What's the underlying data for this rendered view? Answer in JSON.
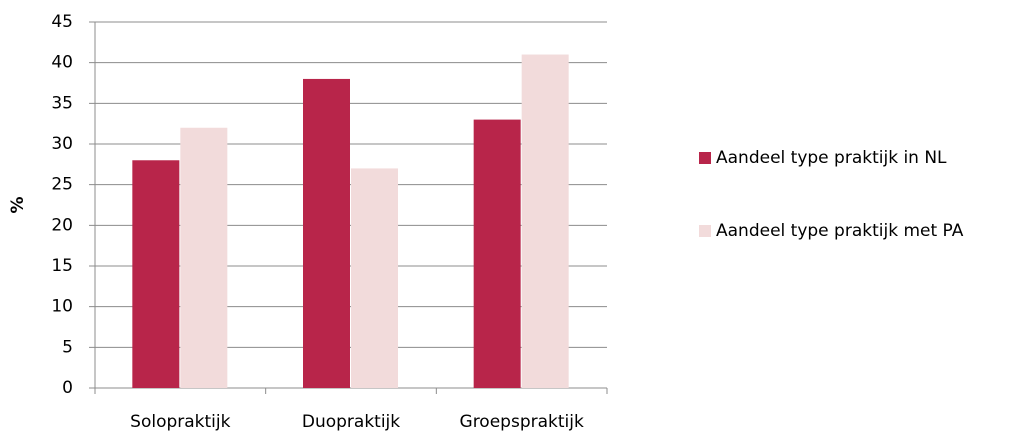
{
  "chart_data": {
    "type": "bar",
    "ylabel": "%",
    "categories": [
      "Solopraktijk",
      "Duopraktijk",
      "Groepspraktijk"
    ],
    "series": [
      {
        "name": "Aandeel type praktijk in NL",
        "color": "#b8254a",
        "values": [
          28,
          38,
          33
        ]
      },
      {
        "name": "Aandeel type praktijk met PA",
        "color": "#f2dbdb",
        "values": [
          32,
          27,
          41
        ]
      }
    ],
    "ylim": [
      0,
      45
    ],
    "yticks": [
      0,
      5,
      10,
      15,
      20,
      25,
      30,
      35,
      40,
      45
    ],
    "grid": true,
    "legend": "right"
  }
}
